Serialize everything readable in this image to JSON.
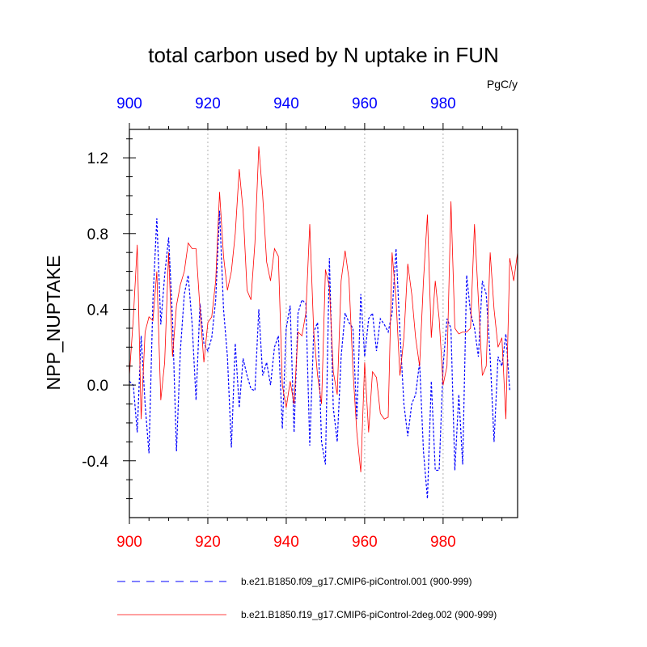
{
  "chart_data": {
    "type": "line",
    "title": "total carbon used by N uptake in FUN",
    "units": "PgC/y",
    "ylabel": "NPP_NUPTAKE",
    "xlabel": "",
    "xlim": [
      900,
      999
    ],
    "ylim": [
      -0.7,
      1.35
    ],
    "xticks": [
      900,
      920,
      940,
      960,
      980
    ],
    "xtick_labels": [
      "900",
      "920",
      "940",
      "960",
      "980"
    ],
    "yticks": [
      -0.4,
      0.0,
      0.4,
      0.8,
      1.2
    ],
    "ytick_labels": [
      "-0.4",
      "0.0",
      "0.4",
      "0.8",
      "1.2"
    ],
    "top_axis_color": "#0000ff",
    "bottom_axis_color": "#ff0000",
    "grid": "vertical dotted at major x ticks",
    "x_start": 900,
    "series": [
      {
        "name": "b.e21.B1850.f09_g17.CMIP6-piControl.001 (900-999)",
        "color": "#0000ff",
        "style": "dashed",
        "values": [
          0.02,
          0.0,
          -0.25,
          0.26,
          -0.1,
          -0.36,
          0.45,
          0.88,
          0.32,
          0.58,
          0.78,
          0.35,
          -0.35,
          0.18,
          0.48,
          0.58,
          0.32,
          -0.08,
          0.43,
          0.22,
          0.18,
          0.25,
          0.45,
          0.92,
          0.4,
          0.15,
          -0.33,
          0.22,
          -0.12,
          0.14,
          0.05,
          -0.02,
          -0.03,
          0.4,
          0.05,
          0.12,
          0.0,
          0.2,
          0.26,
          -0.23,
          0.3,
          0.42,
          -0.25,
          0.38,
          0.45,
          0.43,
          -0.32,
          0.28,
          0.33,
          -0.3,
          -0.42,
          0.67,
          -0.12,
          -0.3,
          0.15,
          0.38,
          0.33,
          0.3,
          -0.18,
          0.48,
          0.15,
          0.35,
          0.38,
          0.18,
          0.35,
          0.32,
          0.28,
          0.38,
          0.72,
          0.28,
          -0.1,
          -0.27,
          -0.1,
          -0.05,
          0.12,
          -0.35,
          -0.6,
          0.02,
          -0.45,
          -0.45,
          0.1,
          0.35,
          0.3,
          -0.45,
          -0.05,
          -0.42,
          0.58,
          0.38,
          0.3,
          0.15,
          0.55,
          0.48,
          0.15,
          -0.3,
          0.15,
          0.1,
          0.27,
          -0.03,
          null,
          null
        ]
      },
      {
        "name": "b.e21.B1850.f19_g17.CMIP6-piControl-2deg.002 (900-999)",
        "color": "#ff0000",
        "style": "solid",
        "values": [
          0.05,
          0.35,
          0.74,
          -0.18,
          0.28,
          0.36,
          0.34,
          0.6,
          -0.08,
          0.12,
          0.7,
          0.15,
          0.42,
          0.53,
          0.6,
          0.75,
          0.72,
          0.72,
          0.4,
          0.12,
          0.33,
          0.36,
          0.55,
          1.02,
          0.68,
          0.5,
          0.6,
          0.8,
          1.14,
          0.92,
          0.5,
          0.45,
          0.75,
          1.26,
          1.0,
          0.65,
          0.55,
          0.72,
          0.68,
          0.0,
          -0.12,
          0.02,
          -0.1,
          0.28,
          0.26,
          0.38,
          0.85,
          0.28,
          0.05,
          -0.1,
          0.61,
          0.52,
          0.07,
          -0.05,
          0.55,
          0.71,
          0.56,
          0.08,
          -0.25,
          -0.46,
          0.12,
          -0.25,
          0.07,
          0.04,
          -0.15,
          -0.18,
          -0.17,
          0.7,
          0.45,
          0.05,
          0.25,
          0.64,
          0.48,
          0.25,
          0.1,
          0.55,
          0.9,
          0.25,
          0.55,
          0.35,
          0.0,
          0.1,
          0.97,
          0.3,
          0.27,
          0.28,
          0.28,
          0.3,
          0.85,
          0.45,
          0.05,
          0.1,
          0.7,
          0.4,
          0.2,
          0.25,
          -0.18,
          0.67,
          0.55,
          0.7
        ]
      }
    ],
    "legend": "bottom"
  }
}
